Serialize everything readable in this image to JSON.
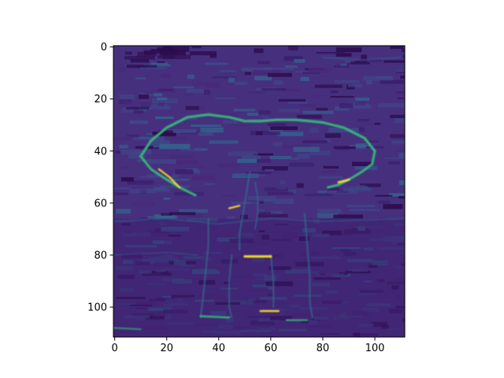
{
  "chart_data": {
    "type": "heatmap",
    "title": "",
    "xlabel": "",
    "ylabel": "",
    "colormap": "viridis",
    "image_size": [
      112,
      112
    ],
    "xlim": [
      -0.5,
      111.5
    ],
    "ylim": [
      111.5,
      -0.5
    ],
    "x_ticks": [
      0,
      20,
      40,
      60,
      80,
      100
    ],
    "y_ticks": [
      0,
      20,
      40,
      60,
      80,
      100
    ],
    "grid": false,
    "colors": {
      "background": "#46307e",
      "low": "#440154",
      "mid": "#31688e",
      "edge": "#35b779",
      "high": "#fde725"
    }
  }
}
